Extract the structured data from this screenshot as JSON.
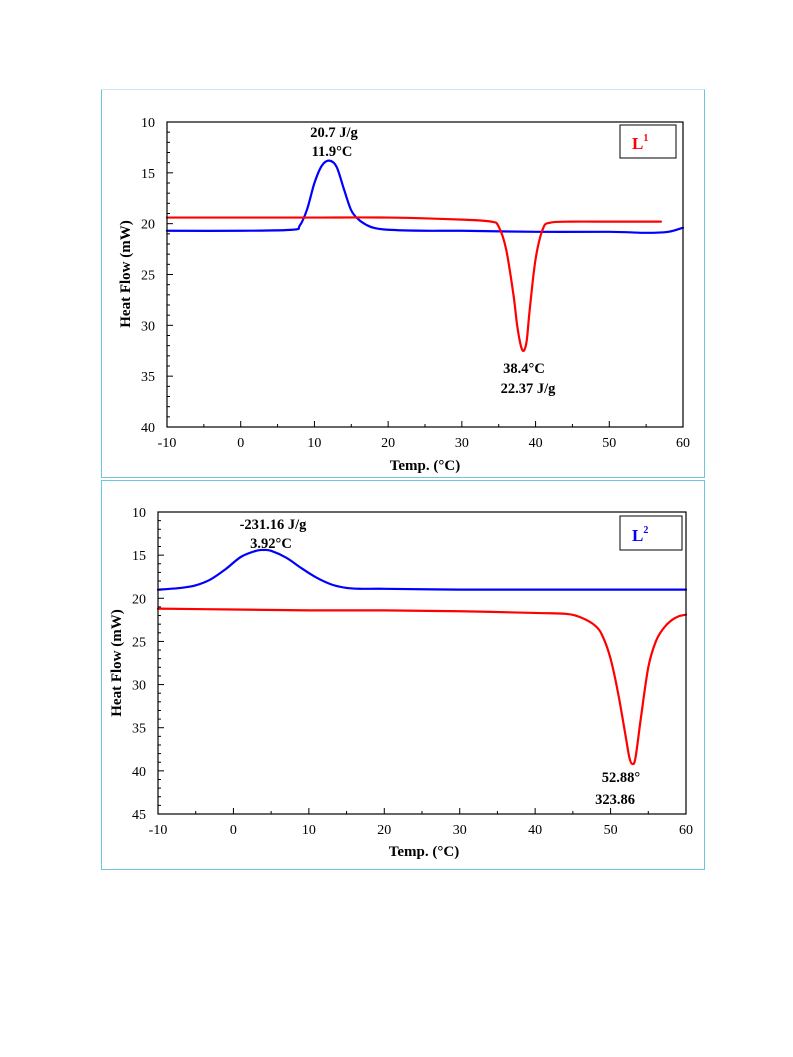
{
  "chart_data": [
    {
      "type": "line",
      "xlabel": "Temp. (°C)",
      "ylabel": "Heat Flow (mW)",
      "xlim": [
        -10,
        60
      ],
      "ylim": [
        10,
        40
      ],
      "y_inverted": true,
      "x_ticks": [
        "-10",
        "0",
        "10",
        "20",
        "30",
        "40",
        "50",
        "60"
      ],
      "y_ticks": [
        "10",
        "15",
        "20",
        "25",
        "30",
        "35",
        "40"
      ],
      "legend": {
        "base": "L",
        "sup": "1",
        "color": "#ff0000"
      },
      "annotations": [
        {
          "text": "20.7 J/g",
          "color": "#000000"
        },
        {
          "text": "11.9°C",
          "color": "#000000"
        },
        {
          "text": "38.4°C",
          "color": "#000000"
        },
        {
          "text": "22.37 J/g",
          "color": "#000000"
        }
      ],
      "series": [
        {
          "color": "#0000ff",
          "x": [
            -10,
            0,
            7,
            8,
            9,
            10,
            11,
            12,
            13,
            14,
            15,
            16,
            17,
            18,
            20,
            25,
            30,
            40,
            50,
            55,
            58,
            60
          ],
          "y": [
            20.7,
            20.7,
            20.6,
            20.2,
            18.6,
            16.0,
            14.3,
            13.8,
            14.4,
            16.6,
            18.7,
            19.6,
            20.1,
            20.4,
            20.6,
            20.7,
            20.7,
            20.8,
            20.8,
            20.9,
            20.8,
            20.4
          ]
        },
        {
          "color": "#ff0000",
          "x": [
            -10,
            0,
            10,
            20,
            30,
            34,
            35,
            36,
            37,
            37.5,
            38,
            38.4,
            38.8,
            39.2,
            40,
            41,
            42,
            45,
            50,
            57
          ],
          "y": [
            19.4,
            19.4,
            19.4,
            19.4,
            19.6,
            19.8,
            20.3,
            22.5,
            27.0,
            30.0,
            32.0,
            32.5,
            31.5,
            28.5,
            23.5,
            20.5,
            19.9,
            19.8,
            19.8,
            19.8
          ]
        }
      ]
    },
    {
      "type": "line",
      "xlabel": "Temp. (°C)",
      "ylabel": "Heat Flow (mW)",
      "xlim": [
        -10,
        60
      ],
      "ylim": [
        10,
        45
      ],
      "y_inverted": true,
      "x_ticks": [
        "-10",
        "0",
        "10",
        "20",
        "30",
        "40",
        "50",
        "60"
      ],
      "y_ticks": [
        "10",
        "15",
        "20",
        "25",
        "30",
        "35",
        "40",
        "45"
      ],
      "legend": {
        "base": "L",
        "sup": "2",
        "color": "#0000ff"
      },
      "annotations": [
        {
          "text": "-231.16 J/g",
          "color": "#000000"
        },
        {
          "text": "3.92°C",
          "color": "#000000"
        },
        {
          "text": "52.88°",
          "color": "#000000"
        },
        {
          "text": "323.86",
          "color": "#000000"
        }
      ],
      "series": [
        {
          "color": "#0000ff",
          "x": [
            -10,
            -7,
            -5,
            -3,
            -1,
            1,
            3,
            4,
            5,
            7,
            9,
            11,
            13,
            15,
            17,
            20,
            30,
            40,
            50,
            60
          ],
          "y": [
            19.0,
            18.8,
            18.5,
            17.8,
            16.6,
            15.2,
            14.5,
            14.4,
            14.5,
            15.3,
            16.5,
            17.6,
            18.4,
            18.8,
            18.9,
            18.9,
            19.0,
            19.0,
            19.0,
            19.0
          ]
        },
        {
          "color": "#ff0000",
          "x": [
            -10,
            0,
            10,
            20,
            30,
            40,
            44,
            46,
            48,
            49,
            50,
            51,
            52,
            52.5,
            52.9,
            53.3,
            54,
            55,
            56,
            57,
            58,
            59,
            60
          ],
          "y": [
            21.2,
            21.3,
            21.4,
            21.4,
            21.5,
            21.7,
            21.8,
            22.2,
            23.2,
            24.5,
            27.0,
            31.0,
            36.0,
            38.5,
            39.2,
            38.5,
            34.0,
            28.0,
            25.0,
            23.5,
            22.6,
            22.1,
            21.9
          ]
        }
      ]
    }
  ]
}
